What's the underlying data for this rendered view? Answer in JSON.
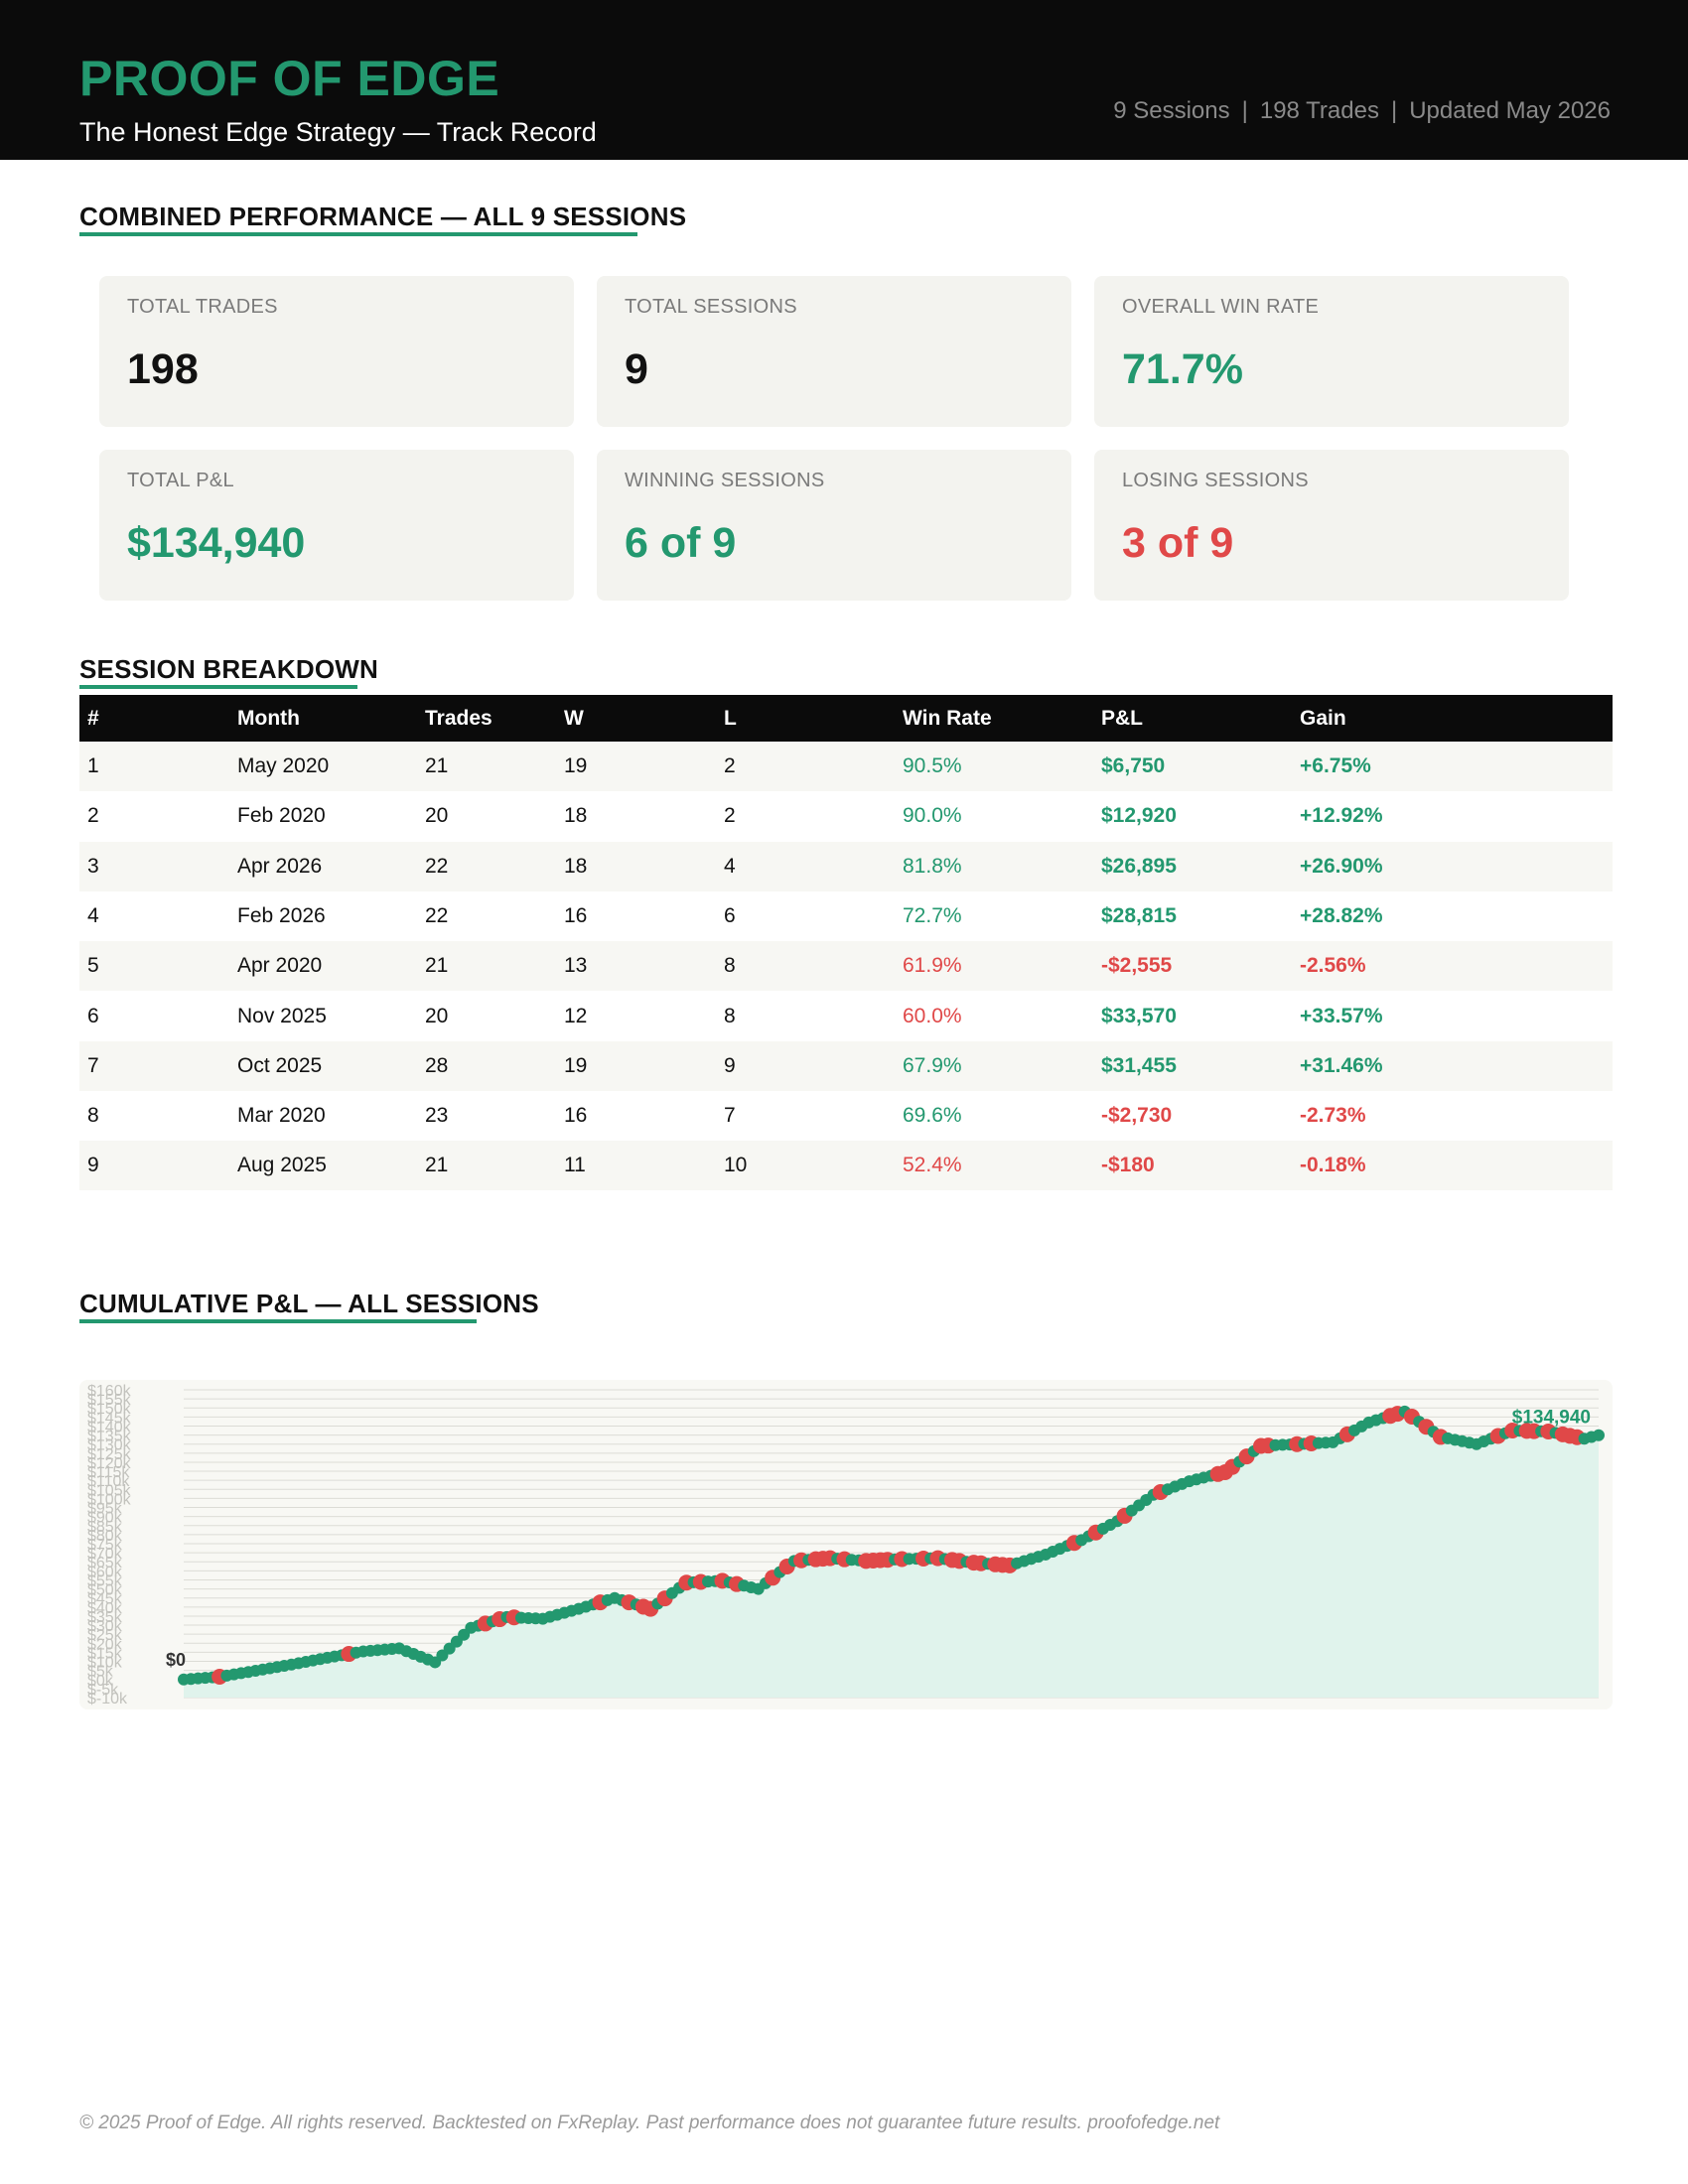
{
  "header": {
    "brand": "PROOF OF EDGE",
    "subtitle": "The Honest Edge Strategy — Track Record",
    "meta_sessions": "9 Sessions",
    "meta_trades": "198 Trades",
    "meta_updated": "Updated May 2026",
    "meta_separator": "|"
  },
  "sections": {
    "combined": "COMBINED PERFORMANCE — ALL 9 SESSIONS",
    "breakdown": "SESSION BREAKDOWN",
    "cumulative": "CUMULATIVE P&L — ALL SESSIONS"
  },
  "cards": [
    {
      "label": "TOTAL TRADES",
      "value": "198",
      "tone": "neutral"
    },
    {
      "label": "TOTAL SESSIONS",
      "value": "9",
      "tone": "neutral"
    },
    {
      "label": "OVERALL WIN RATE",
      "value": "71.7%",
      "tone": "green"
    },
    {
      "label": "TOTAL P&L",
      "value": "$134,940",
      "tone": "green"
    },
    {
      "label": "WINNING SESSIONS",
      "value": "6 of 9",
      "tone": "green"
    },
    {
      "label": "LOSING SESSIONS",
      "value": "3 of 9",
      "tone": "red"
    }
  ],
  "table": {
    "headers": [
      "#",
      "Month",
      "Trades",
      "W",
      "L",
      "Win Rate",
      "P&L",
      "Gain"
    ],
    "rows": [
      {
        "n": "1",
        "month": "May 2020",
        "trades": "21",
        "w": "19",
        "l": "2",
        "win_rate": "90.5%",
        "wr_tone": "green",
        "pnl": "$6,750",
        "gain": "+6.75%",
        "tone": "green"
      },
      {
        "n": "2",
        "month": "Feb 2020",
        "trades": "20",
        "w": "18",
        "l": "2",
        "win_rate": "90.0%",
        "wr_tone": "green",
        "pnl": "$12,920",
        "gain": "+12.92%",
        "tone": "green"
      },
      {
        "n": "3",
        "month": "Apr 2026",
        "trades": "22",
        "w": "18",
        "l": "4",
        "win_rate": "81.8%",
        "wr_tone": "green",
        "pnl": "$26,895",
        "gain": "+26.90%",
        "tone": "green"
      },
      {
        "n": "4",
        "month": "Feb 2026",
        "trades": "22",
        "w": "16",
        "l": "6",
        "win_rate": "72.7%",
        "wr_tone": "green",
        "pnl": "$28,815",
        "gain": "+28.82%",
        "tone": "green"
      },
      {
        "n": "5",
        "month": "Apr 2020",
        "trades": "21",
        "w": "13",
        "l": "8",
        "win_rate": "61.9%",
        "wr_tone": "red",
        "pnl": "-$2,555",
        "gain": "-2.56%",
        "tone": "red"
      },
      {
        "n": "6",
        "month": "Nov 2025",
        "trades": "20",
        "w": "12",
        "l": "8",
        "win_rate": "60.0%",
        "wr_tone": "red",
        "pnl": "$33,570",
        "gain": "+33.57%",
        "tone": "green"
      },
      {
        "n": "7",
        "month": "Oct 2025",
        "trades": "28",
        "w": "19",
        "l": "9",
        "win_rate": "67.9%",
        "wr_tone": "green",
        "pnl": "$31,455",
        "gain": "+31.46%",
        "tone": "green"
      },
      {
        "n": "8",
        "month": "Mar 2020",
        "trades": "23",
        "w": "16",
        "l": "7",
        "win_rate": "69.6%",
        "wr_tone": "green",
        "pnl": "-$2,730",
        "gain": "-2.73%",
        "tone": "red"
      },
      {
        "n": "9",
        "month": "Aug 2025",
        "trades": "21",
        "w": "11",
        "l": "10",
        "win_rate": "52.4%",
        "wr_tone": "red",
        "pnl": "-$180",
        "gain": "-0.18%",
        "tone": "red"
      }
    ]
  },
  "colors": {
    "green": "#23986f",
    "red": "#e04848",
    "header_bg": "#0b0b0b",
    "card_bg": "#f3f3ef",
    "area_fill": "#e0f3ec"
  },
  "chart_data": {
    "type": "line",
    "ylim": [
      -10000,
      160000
    ],
    "y_ticks": [
      "$-10k",
      "$-5k",
      "$0k",
      "$5k",
      "$10k",
      "$15k",
      "$20k",
      "$25k",
      "$30k",
      "$35k",
      "$40k",
      "$45k",
      "$50k",
      "$55k",
      "$60k",
      "$65k",
      "$70k",
      "$75k",
      "$80k",
      "$85k",
      "$90k",
      "$95k",
      "$100k",
      "$105k",
      "$110k",
      "$115k",
      "$120k",
      "$125k",
      "$130k",
      "$135k",
      "$140k",
      "$145k",
      "$150k",
      "$155k",
      "$160k"
    ],
    "y_tick_values": [
      -10000,
      -5000,
      0,
      5000,
      10000,
      15000,
      20000,
      25000,
      30000,
      35000,
      40000,
      45000,
      50000,
      55000,
      60000,
      65000,
      70000,
      75000,
      80000,
      85000,
      90000,
      95000,
      100000,
      105000,
      110000,
      115000,
      120000,
      125000,
      130000,
      135000,
      140000,
      145000,
      150000,
      155000,
      160000
    ],
    "grid": true,
    "start_label": "$0",
    "end_label": "$134,940",
    "trades": 198,
    "x": [
      0,
      5,
      10,
      15,
      20,
      25,
      30,
      35,
      40,
      45,
      50,
      55,
      60,
      65,
      70,
      75,
      80,
      85,
      90,
      95,
      100,
      105,
      110,
      115,
      120,
      125,
      130,
      135,
      140,
      145,
      150,
      155,
      160,
      165,
      170,
      175,
      180,
      185,
      190,
      195,
      197
    ],
    "y": [
      0,
      1500,
      4800,
      8200,
      12000,
      15500,
      17200,
      9500,
      28500,
      34500,
      33500,
      39000,
      45000,
      39000,
      53500,
      54500,
      50000,
      65500,
      67000,
      65500,
      66500,
      67000,
      64500,
      63000,
      69000,
      77000,
      87500,
      102000,
      109500,
      114500,
      129000,
      130000,
      131000,
      142000,
      148000,
      134000,
      130000,
      137500,
      137000,
      133000,
      134940
    ],
    "loss_markers_x": [
      5,
      23,
      42,
      44,
      46,
      58,
      62,
      64,
      65,
      67,
      70,
      72,
      75,
      77,
      82,
      84,
      86,
      88,
      89,
      90,
      92,
      95,
      96,
      97,
      98,
      100,
      103,
      105,
      107,
      108,
      110,
      111,
      113,
      114,
      115,
      124,
      127,
      131,
      136,
      144,
      145,
      146,
      148,
      150,
      151,
      155,
      157,
      162,
      168,
      169,
      171,
      173,
      175,
      183,
      185,
      187,
      188,
      190,
      192,
      193,
      194
    ]
  },
  "footer": "© 2025 Proof of Edge. All rights reserved. Backtested on FxReplay. Past performance does not guarantee future results. proofofedge.net"
}
